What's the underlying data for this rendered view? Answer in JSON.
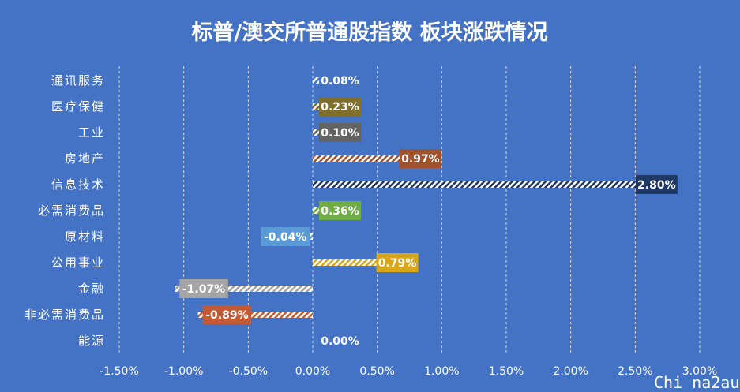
{
  "chart_data": {
    "type": "bar",
    "orientation": "horizontal",
    "title": "标普/澳交所普通股指数 板块涨跌情况",
    "categories": [
      "通讯服务",
      "医疗保健",
      "工业",
      "房地产",
      "信息技术",
      "必需消费品",
      "原材料",
      "公用事业",
      "金融",
      "非必需消费品",
      "能源"
    ],
    "values": [
      0.08,
      0.23,
      0.1,
      0.97,
      2.8,
      0.36,
      -0.04,
      0.79,
      -1.07,
      -0.89,
      0.0
    ],
    "value_labels": [
      "0.08%",
      "0.23%",
      "0.10%",
      "0.97%",
      "2.80%",
      "0.36%",
      "-0.04%",
      "0.79%",
      "-1.07%",
      "-0.89%",
      "0.00%"
    ],
    "xlim": [
      -1.5,
      3.0
    ],
    "xticks": [
      "-1.50%",
      "-1.00%",
      "-0.50%",
      "0.00%",
      "0.50%",
      "1.00%",
      "1.50%",
      "2.00%",
      "2.50%",
      "3.00%"
    ],
    "grid": true,
    "colors": [
      "#4472c4",
      "#7f6f2a",
      "#636363",
      "#a0522d",
      "#203864",
      "#70ad47",
      "#5b9bd5",
      "#d8a61b",
      "#a5a5a5",
      "#c55a32",
      "#4472c4"
    ],
    "background": "#4472c4"
  },
  "watermark": "Chi na2au"
}
